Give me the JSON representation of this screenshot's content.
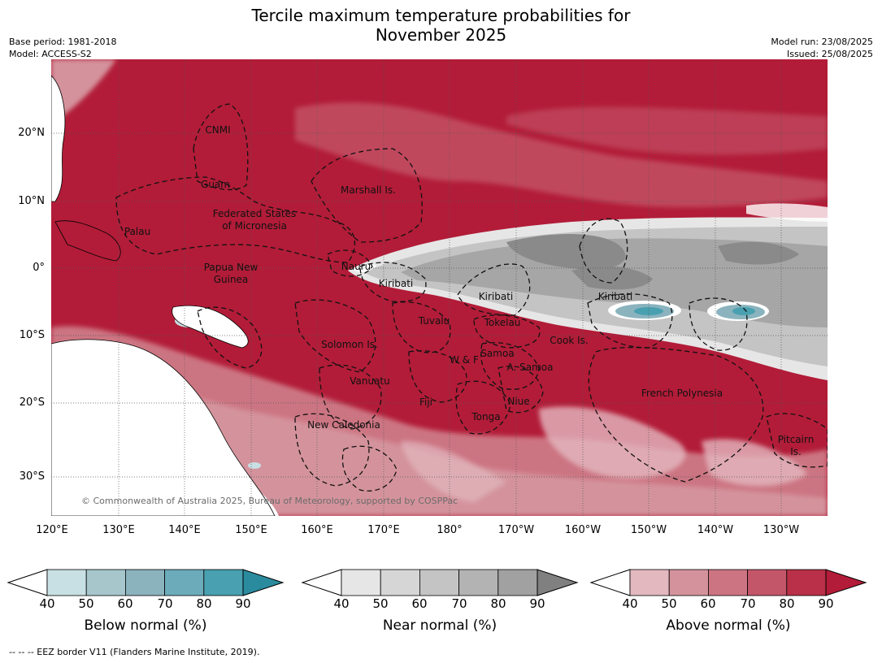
{
  "title": {
    "line1": "Tercile maximum temperature probabilities for",
    "line2": "November 2025"
  },
  "meta_left": {
    "base_period": "Base period: 1981-2018",
    "model": "Model: ACCESS-S2"
  },
  "meta_right": {
    "model_run": "Model run: 23/08/2025",
    "issued": "Issued: 25/08/2025"
  },
  "map": {
    "lat_labels": [
      "20°N",
      "10°N",
      "0°",
      "10°S",
      "20°S",
      "30°S"
    ],
    "lon_labels": [
      "120°E",
      "130°E",
      "140°E",
      "150°E",
      "160°E",
      "170°E",
      "180°",
      "170°W",
      "160°W",
      "150°W",
      "140°W",
      "130°W"
    ],
    "places": {
      "cnmi": "CNMI",
      "guam": "Guam",
      "marshall": "Marshall Is.",
      "fsm_1": "Federated States",
      "fsm_2": "of Micronesia",
      "palau": "Palau",
      "png_1": "Papua New",
      "png_2": "Guinea",
      "nauru": "Nauru",
      "kiribati_w": "Kiribati",
      "kiribati_c": "Kiribati",
      "kiribati_e": "Kiribati",
      "tuvalu": "Tuvalu",
      "tokelau": "Tokelau",
      "cook": "Cook Is.",
      "solomon": "Solomon Is.",
      "wf": "W & F",
      "samoa": "Samoa",
      "asamoa": "A. Samoa",
      "vanuatu": "Vanuatu",
      "fiji": "Fiji",
      "niue": "Niue",
      "tonga": "Tonga",
      "french_polynesia": "French Polynesia",
      "new_caledonia": "New Caledonia",
      "pitcairn_1": "Pitcairn",
      "pitcairn_2": "Is."
    },
    "copyright": "© Commonwealth of Australia 2025, Bureau of Meteorology, supported by COSPPac",
    "colors": {
      "above_dominant": "#b21c38",
      "near_dominant": "#a6a6a6",
      "below_dominant": "#6fb0c0",
      "land": "#ffffff"
    }
  },
  "colorbars": [
    {
      "key": "below",
      "title": "Below normal (%)",
      "ticks": [
        "40",
        "50",
        "60",
        "70",
        "80",
        "90"
      ],
      "colors": [
        "#c8dfe4",
        "#a6c6cc",
        "#8ab3be",
        "#6cacba",
        "#48a0b0",
        "#2b8b9e"
      ]
    },
    {
      "key": "near",
      "title": "Near normal (%)",
      "ticks": [
        "40",
        "50",
        "60",
        "70",
        "80",
        "90"
      ],
      "colors": [
        "#e6e6e6",
        "#d6d6d6",
        "#c4c4c4",
        "#b3b3b3",
        "#a1a1a1",
        "#808080"
      ]
    },
    {
      "key": "above",
      "title": "Above normal (%)",
      "ticks": [
        "40",
        "50",
        "60",
        "70",
        "80",
        "90"
      ],
      "colors": [
        "#e3b8bf",
        "#d4939c",
        "#cc7482",
        "#c4566a",
        "#b93048",
        "#b21c38"
      ]
    }
  ],
  "footnote": "--  --  -- EEZ border V11 (Flanders Marine Institute, 2019)."
}
